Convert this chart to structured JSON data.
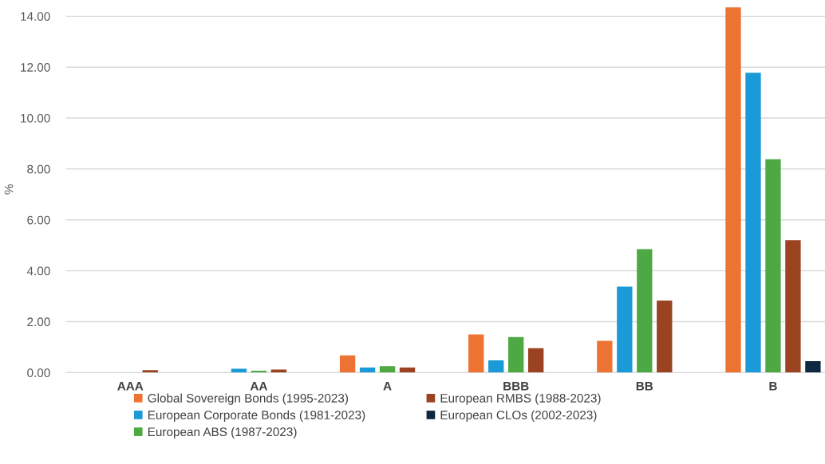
{
  "chart_data": {
    "type": "bar",
    "ylabel": "%",
    "categories": [
      "AAA",
      "AA",
      "A",
      "BBB",
      "BB",
      "B"
    ],
    "series": [
      {
        "name": "Global Sovereign Bonds (1995-2023)",
        "color": "#ed7332",
        "values": [
          null,
          null,
          0.68,
          1.5,
          1.25,
          14.35
        ]
      },
      {
        "name": "European Corporate Bonds (1981-2023)",
        "color": "#1a9ad6",
        "values": [
          null,
          0.15,
          0.2,
          0.48,
          3.38,
          11.78
        ]
      },
      {
        "name": "European ABS (1987-2023)",
        "color": "#4ea843",
        "values": [
          null,
          0.07,
          0.25,
          1.4,
          4.85,
          8.38
        ]
      },
      {
        "name": "European RMBS (1988-2023)",
        "color": "#9b4221",
        "values": [
          0.1,
          0.12,
          0.2,
          0.96,
          2.83,
          5.2
        ]
      },
      {
        "name": "European CLOs (2002-2023)",
        "color": "#0e2841",
        "values": [
          null,
          null,
          null,
          null,
          null,
          0.45
        ]
      }
    ],
    "ylim": [
      0,
      14.4
    ],
    "yticks": [
      {
        "value": 0,
        "label": "0.00"
      },
      {
        "value": 2,
        "label": "2.00"
      },
      {
        "value": 4,
        "label": "4.00"
      },
      {
        "value": 6,
        "label": "6.00"
      },
      {
        "value": 8,
        "label": "8.00"
      },
      {
        "value": 10,
        "label": "10.00"
      },
      {
        "value": 12,
        "label": "12.00"
      },
      {
        "value": 14,
        "label": "14.00"
      }
    ],
    "grid": "y",
    "legend": "bottom"
  }
}
